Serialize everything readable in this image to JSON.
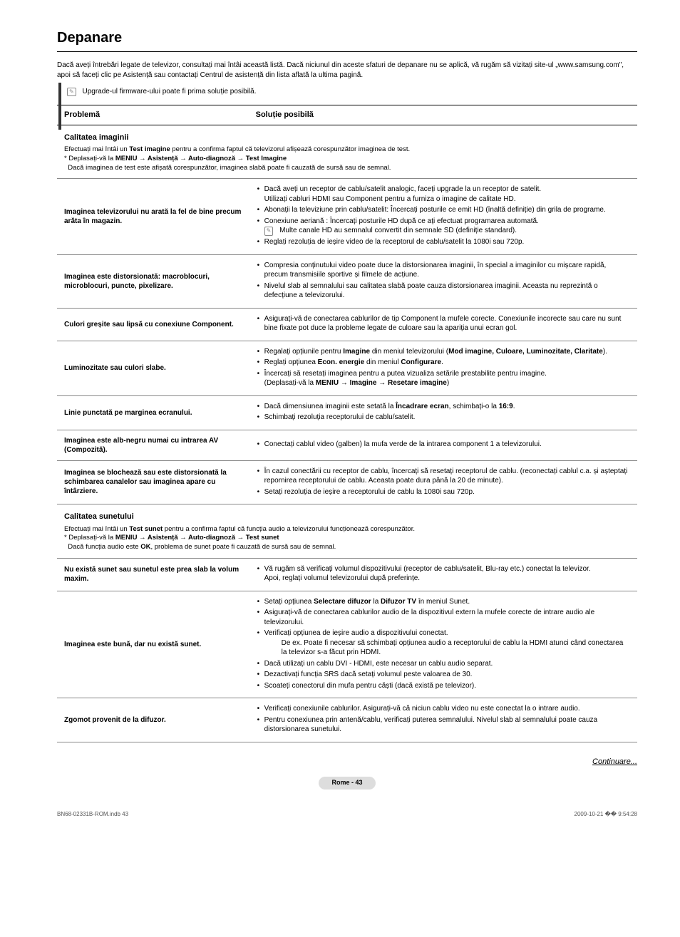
{
  "title": "Depanare",
  "intro": "Dacă aveți întrebări legate de televizor, consultați mai întâi această listă. Dacă niciunul din aceste sfaturi de depanare nu se aplică, vă rugăm să vizitați site-ul „www.samsung.com\", apoi să faceți clic pe Asistență sau contactați Centrul de asistență din lista aflată la ultima pagină.",
  "note": "Upgrade-ul firmware-ului poate fi prima soluție posibilă.",
  "header_problem": "Problemă",
  "header_solution": "Soluție posibilă",
  "sec1_title": "Calitatea imaginii",
  "sec1_boldword": "Test imagine",
  "sec1_line1a": "Efectuați mai întâi un ",
  "sec1_line1b": " pentru a confirma faptul că televizorul afișează corespunzător imaginea de test.",
  "sec1_line2a": "* Deplasați-vă la ",
  "sec1_menu": "MENIU → Asistență → Auto-diagnoză → Test Imagine",
  "sec1_line3": "Dacă imaginea de test este afișată corespunzător, imaginea slabă poate fi cauzată de sursă sau de semnal.",
  "r1_p": "Imaginea televizorului nu arată la fel de bine precum arăta în magazin.",
  "r1_s1": "Dacă aveți un receptor de cablu/satelit analogic, faceți upgrade la un receptor de satelit.",
  "r1_s1b": "Utilizați cabluri HDMI sau Component pentru a furniza o imagine de calitate HD.",
  "r1_s2": "Abonații la televiziune prin cablu/satelit: Încercați posturile ce emit HD (înaltă definiție) din grila de programe.",
  "r1_s3": "Conexiune aeriană : Încercați posturile HD după ce ați efectuat programarea automată.",
  "r1_s3n": "Multe canale HD au semnalul convertit din semnale SD (definiție standard).",
  "r1_s4": "Reglați rezoluția de ieșire video de la receptorul de cablu/satelit la 1080i sau 720p.",
  "r2_p": "Imaginea este distorsionată: macroblocuri, microblocuri, puncte, pixelizare.",
  "r2_s1": "Compresia conținutului video poate duce la distorsionarea imaginii, în special a imaginilor cu mișcare rapidă, precum transmisiile sportive și filmele de acțiune.",
  "r2_s2": "Nivelul slab al semnalului sau calitatea slabă poate cauza distorsionarea imaginii. Aceasta nu reprezintă o defecțiune a televizorului.",
  "r3_p": "Culori greșite sau lipsă cu conexiune Component.",
  "r3_s1": "Asigurați-vă de conectarea cablurilor de tip Component la mufele corecte. Conexiunile incorecte sau care nu sunt bine fixate pot duce la probleme legate de culoare sau la apariția unui ecran gol.",
  "r4_p": "Luminozitate sau culori slabe.",
  "r4_s1a": "Regalați opțiunile pentru ",
  "r4_s1b": "Imagine",
  "r4_s1c": " din meniul televizorului (",
  "r4_s1d": "Mod imagine, Culoare, Luminozitate, Claritate",
  "r4_s1e": ").",
  "r4_s2a": "Reglați opțiunea ",
  "r4_s2b": "Econ. energie",
  "r4_s2c": " din meniul ",
  "r4_s2d": "Configurare",
  "r4_s2e": ".",
  "r4_s3": "Încercați să resetați imaginea pentru a putea vizualiza setările prestabilite pentru imagine.",
  "r4_s3b_a": "(Deplasați-vă la ",
  "r4_s3b_b": "MENIU → Imagine → Resetare imagine",
  "r4_s3b_c": ")",
  "r5_p": "Linie punctată pe marginea ecranului.",
  "r5_s1a": "Dacă dimensiunea imaginii este setată la ",
  "r5_s1b": "Încadrare ecran",
  "r5_s1c": ", schimbați-o la ",
  "r5_s1d": "16:9",
  "r5_s1e": ".",
  "r5_s2": "Schimbați rezoluția receptorului de cablu/satelit.",
  "r6_p": "Imaginea este alb-negru numai cu intrarea AV (Compozită).",
  "r6_s1": "Conectați cablul video (galben) la mufa verde de la intrarea component 1 a televizorului.",
  "r7_p": "Imaginea se blochează sau este distorsionată la schimbarea canalelor sau imaginea apare cu întârziere.",
  "r7_s1": "În cazul conectării cu receptor de cablu, încercați să resetați receptorul de cablu. (reconectați cablul c.a. și așteptați repornirea receptorului de cablu. Aceasta poate dura până la 20 de minute).",
  "r7_s2": "Setați rezoluția de ieșire a receptorului de cablu la 1080i sau 720p.",
  "sec2_title": "Calitatea sunetului",
  "sec2_boldword": "Test sunet",
  "sec2_line1a": "Efectuați mai întâi un ",
  "sec2_line1b": " pentru a confirma faptul că funcția audio a televizorului funcționează corespunzător.",
  "sec2_line2a": "* Deplasați-vă la ",
  "sec2_menu": "MENIU → Asistență → Auto-diagnoză → Test sunet",
  "sec2_line3a": "Dacă funcția audio este ",
  "sec2_line3b": "OK",
  "sec2_line3c": ", problema de sunet poate fi cauzată de sursă sau de semnal.",
  "r8_p": "Nu există sunet sau sunetul este prea slab la volum maxim.",
  "r8_s1": "Vă rugăm să verificați volumul dispozitivului (receptor de cablu/satelit, Blu-ray etc.) conectat la televizor.",
  "r8_s1b": "Apoi, reglați volumul televizorului după preferințe.",
  "r9_p": "Imaginea este bună, dar nu există sunet.",
  "r9_s1a": "Setați opțiunea ",
  "r9_s1b": "Selectare difuzor",
  "r9_s1c": " la ",
  "r9_s1d": "Difuzor TV",
  "r9_s1e": " în meniul Sunet.",
  "r9_s2": "Asigurați-vă de conectarea cablurilor audio de la dispozitivul extern la mufele corecte de intrare audio ale televizorului.",
  "r9_s3": "Verificați opțiunea de ieșire audio a dispozitivului conectat.",
  "r9_s3b": "De ex. Poate fi necesar să schimbați opțiunea audio a receptorului de cablu la HDMI atunci când conectarea la televizor s-a făcut prin HDMI.",
  "r9_s4": "Dacă utilizați un cablu DVI - HDMI, este necesar un cablu audio separat.",
  "r9_s5": "Dezactivați funcția SRS dacă setați volumul peste valoarea de 30.",
  "r9_s6": "Scoateți conectorul din mufa pentru căști (dacă există pe televizor).",
  "r10_p": "Zgomot provenit de la difuzor.",
  "r10_s1": "Verificați conexiunile cablurilor. Asigurați-vă că niciun cablu video nu este conectat la o intrare audio.",
  "r10_s2": "Pentru conexiunea prin antenă/cablu, verificați puterea semnalului. Nivelul slab al semnalului poate cauza distorsionarea sunetului.",
  "continue": "Continuare...",
  "pagenum": "Rome - 43",
  "footer_left": "BN68-02331B-ROM.indb   43",
  "footer_right": "2009-10-21   �� 9:54:28"
}
